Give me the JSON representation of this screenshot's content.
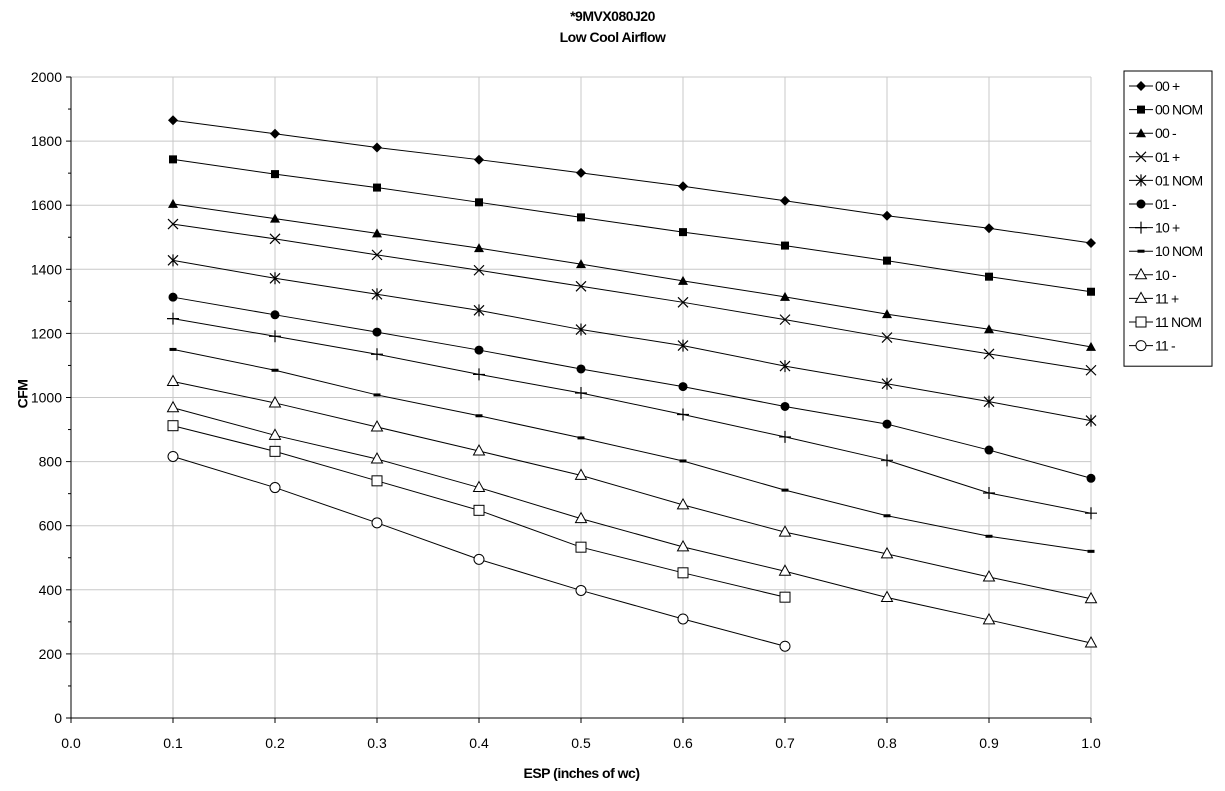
{
  "chart_data": {
    "type": "line",
    "title": "*9MVX080J20",
    "subtitle": "Low Cool Airflow",
    "xlabel": "ESP (inches of wc)",
    "ylabel": "CFM",
    "xlim": [
      0.0,
      1.0
    ],
    "ylim": [
      0,
      2000
    ],
    "x_ticks": [
      "0.0",
      "0.1",
      "0.2",
      "0.3",
      "0.4",
      "0.5",
      "0.6",
      "0.7",
      "0.8",
      "0.9",
      "1.0"
    ],
    "y_ticks": [
      "0",
      "200",
      "400",
      "600",
      "800",
      "1000",
      "1200",
      "1400",
      "1600",
      "1800",
      "2000"
    ],
    "grid": true,
    "legend_position": "right",
    "x": [
      0.1,
      0.2,
      0.3,
      0.4,
      0.5,
      0.6,
      0.7,
      0.8,
      0.9,
      1.0
    ],
    "series": [
      {
        "name": "00 +",
        "marker": "diamond",
        "values": [
          1865,
          1823,
          1780,
          1742,
          1701,
          1659,
          1614,
          1567,
          1528,
          1482
        ]
      },
      {
        "name": "00 NOM",
        "marker": "square",
        "values": [
          1743,
          1697,
          1655,
          1609,
          1562,
          1516,
          1474,
          1427,
          1377,
          1330
        ]
      },
      {
        "name": "00 -",
        "marker": "triangle",
        "values": [
          1604,
          1558,
          1512,
          1466,
          1416,
          1364,
          1314,
          1260,
          1213,
          1158
        ]
      },
      {
        "name": "01 +",
        "marker": "x",
        "values": [
          1541,
          1495,
          1445,
          1397,
          1347,
          1297,
          1243,
          1187,
          1136,
          1085
        ]
      },
      {
        "name": "01 NOM",
        "marker": "star",
        "values": [
          1428,
          1372,
          1322,
          1272,
          1212,
          1162,
          1098,
          1043,
          987,
          928
        ]
      },
      {
        "name": "01 -",
        "marker": "circle",
        "values": [
          1313,
          1258,
          1204,
          1148,
          1089,
          1034,
          972,
          917,
          836,
          748
        ]
      },
      {
        "name": "10 +",
        "marker": "plus",
        "values": [
          1246,
          1191,
          1135,
          1072,
          1014,
          947,
          877,
          804,
          702,
          639
        ]
      },
      {
        "name": "10 NOM",
        "marker": "dash",
        "values": [
          1150,
          1085,
          1008,
          943,
          874,
          802,
          711,
          631,
          567,
          520
        ]
      },
      {
        "name": "10 -",
        "marker": "triangle-open",
        "values": [
          1050,
          983,
          908,
          833,
          757,
          665,
          580,
          512,
          440,
          372
        ]
      },
      {
        "name": "11 +",
        "marker": "triangle-open",
        "values": [
          968,
          882,
          808,
          719,
          622,
          534,
          458,
          376,
          306,
          234
        ]
      },
      {
        "name": "11 NOM",
        "marker": "square-open",
        "values": [
          912,
          832,
          740,
          648,
          533,
          453,
          377,
          null,
          null,
          null
        ]
      },
      {
        "name": "11 -",
        "marker": "circle-open",
        "values": [
          816,
          719,
          609,
          495,
          398,
          309,
          224,
          null,
          null,
          null
        ]
      }
    ]
  }
}
